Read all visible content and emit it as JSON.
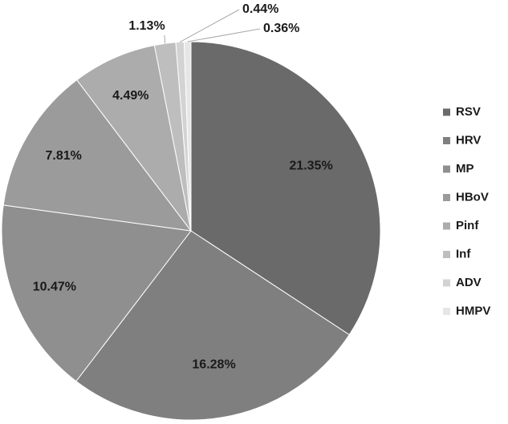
{
  "chart_data": {
    "type": "pie",
    "categories": [
      "RSV",
      "HRV",
      "MP",
      "HBoV",
      "Pinf",
      "Inf",
      "ADV",
      "HMPV"
    ],
    "values": [
      21.35,
      16.28,
      10.47,
      7.81,
      4.49,
      1.13,
      0.44,
      0.36
    ],
    "labels": [
      "21.35%",
      "16.28%",
      "10.47%",
      "7.81%",
      "4.49%",
      "1.13%",
      "0.44%",
      "0.36%"
    ],
    "colors": [
      "#6a6a6a",
      "#7f7f7f",
      "#8f8f8f",
      "#9b9b9b",
      "#acacac",
      "#bebebe",
      "#d3d3d3",
      "#e6e6e6"
    ],
    "start_angle": "12 o'clock",
    "direction": "clockwise",
    "legend_position": "right"
  }
}
